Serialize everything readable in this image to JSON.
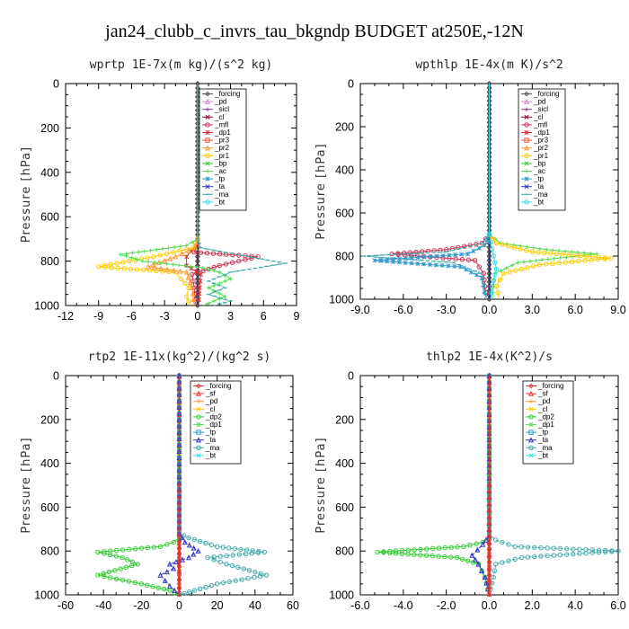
{
  "title": "jan24_clubb_c_invrs_tau_bkgndp  BUDGET at250E,-12N",
  "chart_data": [
    {
      "type": "line",
      "title": "wprtp  1E-7x(m kg)/(s^2 kg)",
      "ylabel": "Pressure [hPa]",
      "xlim": [
        -12,
        9
      ],
      "ylim": [
        1000,
        0
      ],
      "xticks": [
        "-12",
        "-9",
        "-6",
        "-3",
        "0",
        "3",
        "6",
        "9"
      ],
      "yticks": [
        "0",
        "200",
        "400",
        "600",
        "800",
        "1000"
      ],
      "legend": [
        "_forcing",
        "_pd",
        "_sicl",
        "_cl",
        "_mfl",
        "_dp1",
        "_pr3",
        "_pr2",
        "_pr1",
        "_bp",
        "_ac",
        "_tp",
        "_ta",
        "_ma",
        "_bt"
      ],
      "colors": [
        "#555555",
        "#cc88cc",
        "#993399",
        "#990033",
        "#cc3355",
        "#dd3333",
        "#ff5533",
        "#ff9933",
        "#ffcc00",
        "#33cc33",
        "#55dd55",
        "#3399cc",
        "#3333cc",
        "#44aaaa",
        "#33dddd"
      ],
      "series": [
        {
          "name": "_mfl",
          "x": [
            0,
            0,
            -0.1,
            -0.3,
            5.5,
            2.0,
            -0.5,
            -0.3,
            -0.2
          ],
          "y": [
            0,
            700,
            730,
            760,
            780,
            820,
            860,
            920,
            1000
          ]
        },
        {
          "name": "_dp1",
          "x": [
            0,
            0,
            -0.2,
            -1.0,
            -1.0,
            0.3,
            0.2,
            0.1
          ],
          "y": [
            0,
            700,
            730,
            780,
            820,
            860,
            920,
            1000
          ]
        },
        {
          "name": "_pr1",
          "x": [
            0,
            0,
            -0.4,
            -4.0,
            -9.0,
            -2.0,
            -1.5,
            -0.8,
            -1.0,
            -0.6
          ],
          "y": [
            0,
            700,
            740,
            780,
            825,
            850,
            880,
            920,
            960,
            1000
          ]
        },
        {
          "name": "_pr2",
          "x": [
            0,
            0,
            -0.2,
            -2.0,
            -4.5,
            -1.0,
            -0.5,
            -0.3
          ],
          "y": [
            0,
            700,
            740,
            780,
            825,
            850,
            920,
            1000
          ]
        },
        {
          "name": "_ac",
          "x": [
            0,
            0,
            -1.0,
            -7.0,
            -5.0,
            0.5,
            2.0,
            3.0,
            1.0,
            2.5,
            0.5
          ],
          "y": [
            0,
            700,
            730,
            770,
            800,
            830,
            850,
            880,
            920,
            960,
            1000
          ]
        },
        {
          "name": "_ma",
          "x": [
            0,
            0,
            0.3,
            8.0,
            3.0,
            1.0,
            2.5,
            1.0,
            3.0,
            1.5
          ],
          "y": [
            0,
            700,
            740,
            810,
            850,
            890,
            920,
            950,
            980,
            1000
          ]
        }
      ]
    },
    {
      "type": "line",
      "title": "wpthlp  1E-4x(m K)/s^2",
      "ylabel": "Pressure [hPa]",
      "xlim": [
        -9,
        9
      ],
      "ylim": [
        1000,
        0
      ],
      "xticks": [
        "-9.0",
        "-6.0",
        "-3.0",
        "0.0",
        "3.0",
        "6.0",
        "9.0"
      ],
      "yticks": [
        "0",
        "200",
        "400",
        "600",
        "800",
        "1000"
      ],
      "legend": [
        "_forcing",
        "_pd",
        "_sicl",
        "_cl",
        "_mfl",
        "_dp1",
        "_pr3",
        "_pr2",
        "_pr1",
        "_bp",
        "_ac",
        "_tp",
        "_ta",
        "_ma",
        "_bt"
      ],
      "colors": [
        "#555555",
        "#cc88cc",
        "#993399",
        "#990033",
        "#cc3355",
        "#dd3333",
        "#ff5533",
        "#ff9933",
        "#ffcc00",
        "#33cc33",
        "#55dd55",
        "#3399cc",
        "#3333cc",
        "#44aaaa",
        "#33dddd"
      ],
      "series": [
        {
          "name": "_mfl",
          "x": [
            0,
            0,
            -0.5,
            -3.0,
            -6.8,
            -1.0,
            -0.4,
            -0.2
          ],
          "y": [
            0,
            700,
            740,
            770,
            790,
            820,
            880,
            1000
          ]
        },
        {
          "name": "_ac",
          "x": [
            0,
            0,
            0.8,
            4.0,
            7.5,
            2.0,
            0.4,
            0.2
          ],
          "y": [
            0,
            700,
            740,
            770,
            790,
            830,
            880,
            1000
          ]
        },
        {
          "name": "_pr1",
          "x": [
            0,
            0,
            0.5,
            3.0,
            8.5,
            3.5,
            1.0,
            0.5,
            0.7
          ],
          "y": [
            0,
            700,
            740,
            780,
            810,
            840,
            880,
            940,
            1000
          ]
        },
        {
          "name": "_ma",
          "x": [
            0,
            0,
            -0.5,
            -3.0,
            -8.8,
            -2.5,
            -0.6,
            -0.3
          ],
          "y": [
            0,
            700,
            740,
            780,
            800,
            830,
            880,
            1000
          ]
        },
        {
          "name": "_tp",
          "x": [
            0,
            0,
            -0.3,
            -1.5,
            -8.0,
            -2.0,
            -0.5,
            -0.2
          ],
          "y": [
            0,
            700,
            750,
            790,
            820,
            850,
            900,
            1000
          ]
        },
        {
          "name": "_bt",
          "x": [
            0,
            0,
            0.3,
            0.5,
            0.2,
            0.1
          ],
          "y": [
            0,
            700,
            800,
            860,
            940,
            1000
          ]
        }
      ]
    },
    {
      "type": "line",
      "title": "rtp2  1E-11x(kg^2)/(kg^2 s)",
      "ylabel": "Pressure [hPa]",
      "xlim": [
        -60,
        60
      ],
      "ylim": [
        1000,
        0
      ],
      "xticks": [
        "-60",
        "-40",
        "-20",
        "0",
        "20",
        "40",
        "60"
      ],
      "yticks": [
        "0",
        "200",
        "400",
        "600",
        "800",
        "1000"
      ],
      "legend": [
        "_forcing",
        "_sf",
        "_pd",
        "_cl",
        "_dp2",
        "_dp1",
        "_tp",
        "_ta",
        "_ma",
        "_bt"
      ],
      "colors": [
        "#dd3333",
        "#ff3333",
        "#ff9933",
        "#ffcc00",
        "#33cc33",
        "#66dd66",
        "#3399cc",
        "#3333cc",
        "#44aaaa",
        "#33dddd"
      ],
      "series": [
        {
          "name": "_dp2",
          "x": [
            0,
            0,
            -3,
            -10,
            -43,
            -30,
            -22,
            -43,
            -20,
            -5,
            0
          ],
          "y": [
            0,
            740,
            760,
            780,
            805,
            830,
            860,
            910,
            950,
            980,
            1000
          ]
        },
        {
          "name": "_ma",
          "x": [
            0,
            0,
            5,
            20,
            45,
            15,
            25,
            46,
            20,
            8,
            0
          ],
          "y": [
            0,
            720,
            740,
            780,
            805,
            830,
            860,
            910,
            950,
            980,
            1000
          ]
        },
        {
          "name": "_ta",
          "x": [
            0,
            0,
            3,
            10,
            5,
            -5,
            -3,
            -10,
            -5,
            0
          ],
          "y": [
            0,
            720,
            760,
            800,
            830,
            860,
            880,
            910,
            960,
            1000
          ]
        },
        {
          "name": "_forcing",
          "x": [
            0,
            0,
            0,
            0
          ],
          "y": [
            0,
            500,
            900,
            1000
          ]
        }
      ]
    },
    {
      "type": "line",
      "title": "thlp2  1E-4x(K^2)/s",
      "ylabel": "Pressure [hPa]",
      "xlim": [
        -6,
        6
      ],
      "ylim": [
        1000,
        0
      ],
      "xticks": [
        "-6.0",
        "-4.0",
        "-2.0",
        "0.0",
        "2.0",
        "4.0",
        "6.0"
      ],
      "yticks": [
        "0",
        "200",
        "400",
        "600",
        "800",
        "1000"
      ],
      "legend": [
        "_forcing",
        "_sf",
        "_pd",
        "_cl",
        "_dp2",
        "_dp1",
        "_tp",
        "_ta",
        "_ma",
        "_bt"
      ],
      "colors": [
        "#dd3333",
        "#ff3333",
        "#ff9933",
        "#ffcc00",
        "#33cc33",
        "#66dd66",
        "#3399cc",
        "#3333cc",
        "#44aaaa",
        "#33dddd"
      ],
      "series": [
        {
          "name": "_dp2",
          "x": [
            0,
            0,
            -0.3,
            -1.2,
            -5.2,
            -1.5,
            -0.5,
            -0.2,
            0
          ],
          "y": [
            0,
            740,
            760,
            780,
            805,
            830,
            860,
            920,
            1000
          ]
        },
        {
          "name": "_ma",
          "x": [
            0,
            0,
            0.3,
            1.2,
            6.0,
            1.5,
            0.3,
            0.2,
            0
          ],
          "y": [
            0,
            720,
            750,
            780,
            800,
            830,
            860,
            920,
            1000
          ]
        },
        {
          "name": "_ta",
          "x": [
            0,
            0,
            -0.3,
            -0.8,
            -0.5,
            -0.2,
            0
          ],
          "y": [
            0,
            730,
            770,
            820,
            860,
            920,
            1000
          ]
        },
        {
          "name": "_forcing",
          "x": [
            0,
            0,
            0
          ],
          "y": [
            0,
            500,
            1000
          ]
        }
      ]
    }
  ]
}
